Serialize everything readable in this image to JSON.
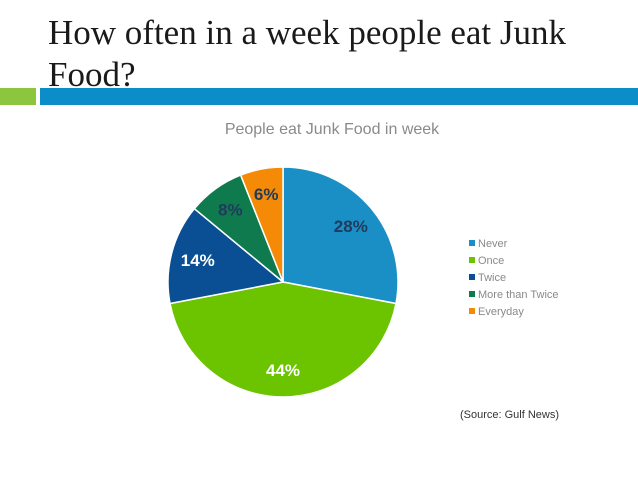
{
  "slide": {
    "title": "How often in a week people eat Junk Food?",
    "source": "(Source: Gulf News)"
  },
  "colors": {
    "accent_green": "#8cc63e",
    "accent_blue": "#0b8ec7"
  },
  "chart_data": {
    "type": "pie",
    "title": "People eat Junk Food in week",
    "legend_position": "right",
    "start_angle_deg": 0,
    "direction": "clockwise",
    "slices": [
      {
        "name": "Never",
        "value": 28,
        "label": "28%",
        "color": "#1a8fc6",
        "label_color": "#1f3b5c"
      },
      {
        "name": "Once",
        "value": 44,
        "label": "44%",
        "color": "#6cc300",
        "label_color": "#ffffff"
      },
      {
        "name": "Twice",
        "value": 14,
        "label": "14%",
        "color": "#0a4f94",
        "label_color": "#ffffff"
      },
      {
        "name": "More than Twice",
        "value": 8,
        "label": "8%",
        "color": "#0e7a4d",
        "label_color": "#1f3b5c"
      },
      {
        "name": "Everyday",
        "value": 6,
        "label": "6%",
        "color": "#f58a07",
        "label_color": "#1f3b5c"
      }
    ]
  }
}
